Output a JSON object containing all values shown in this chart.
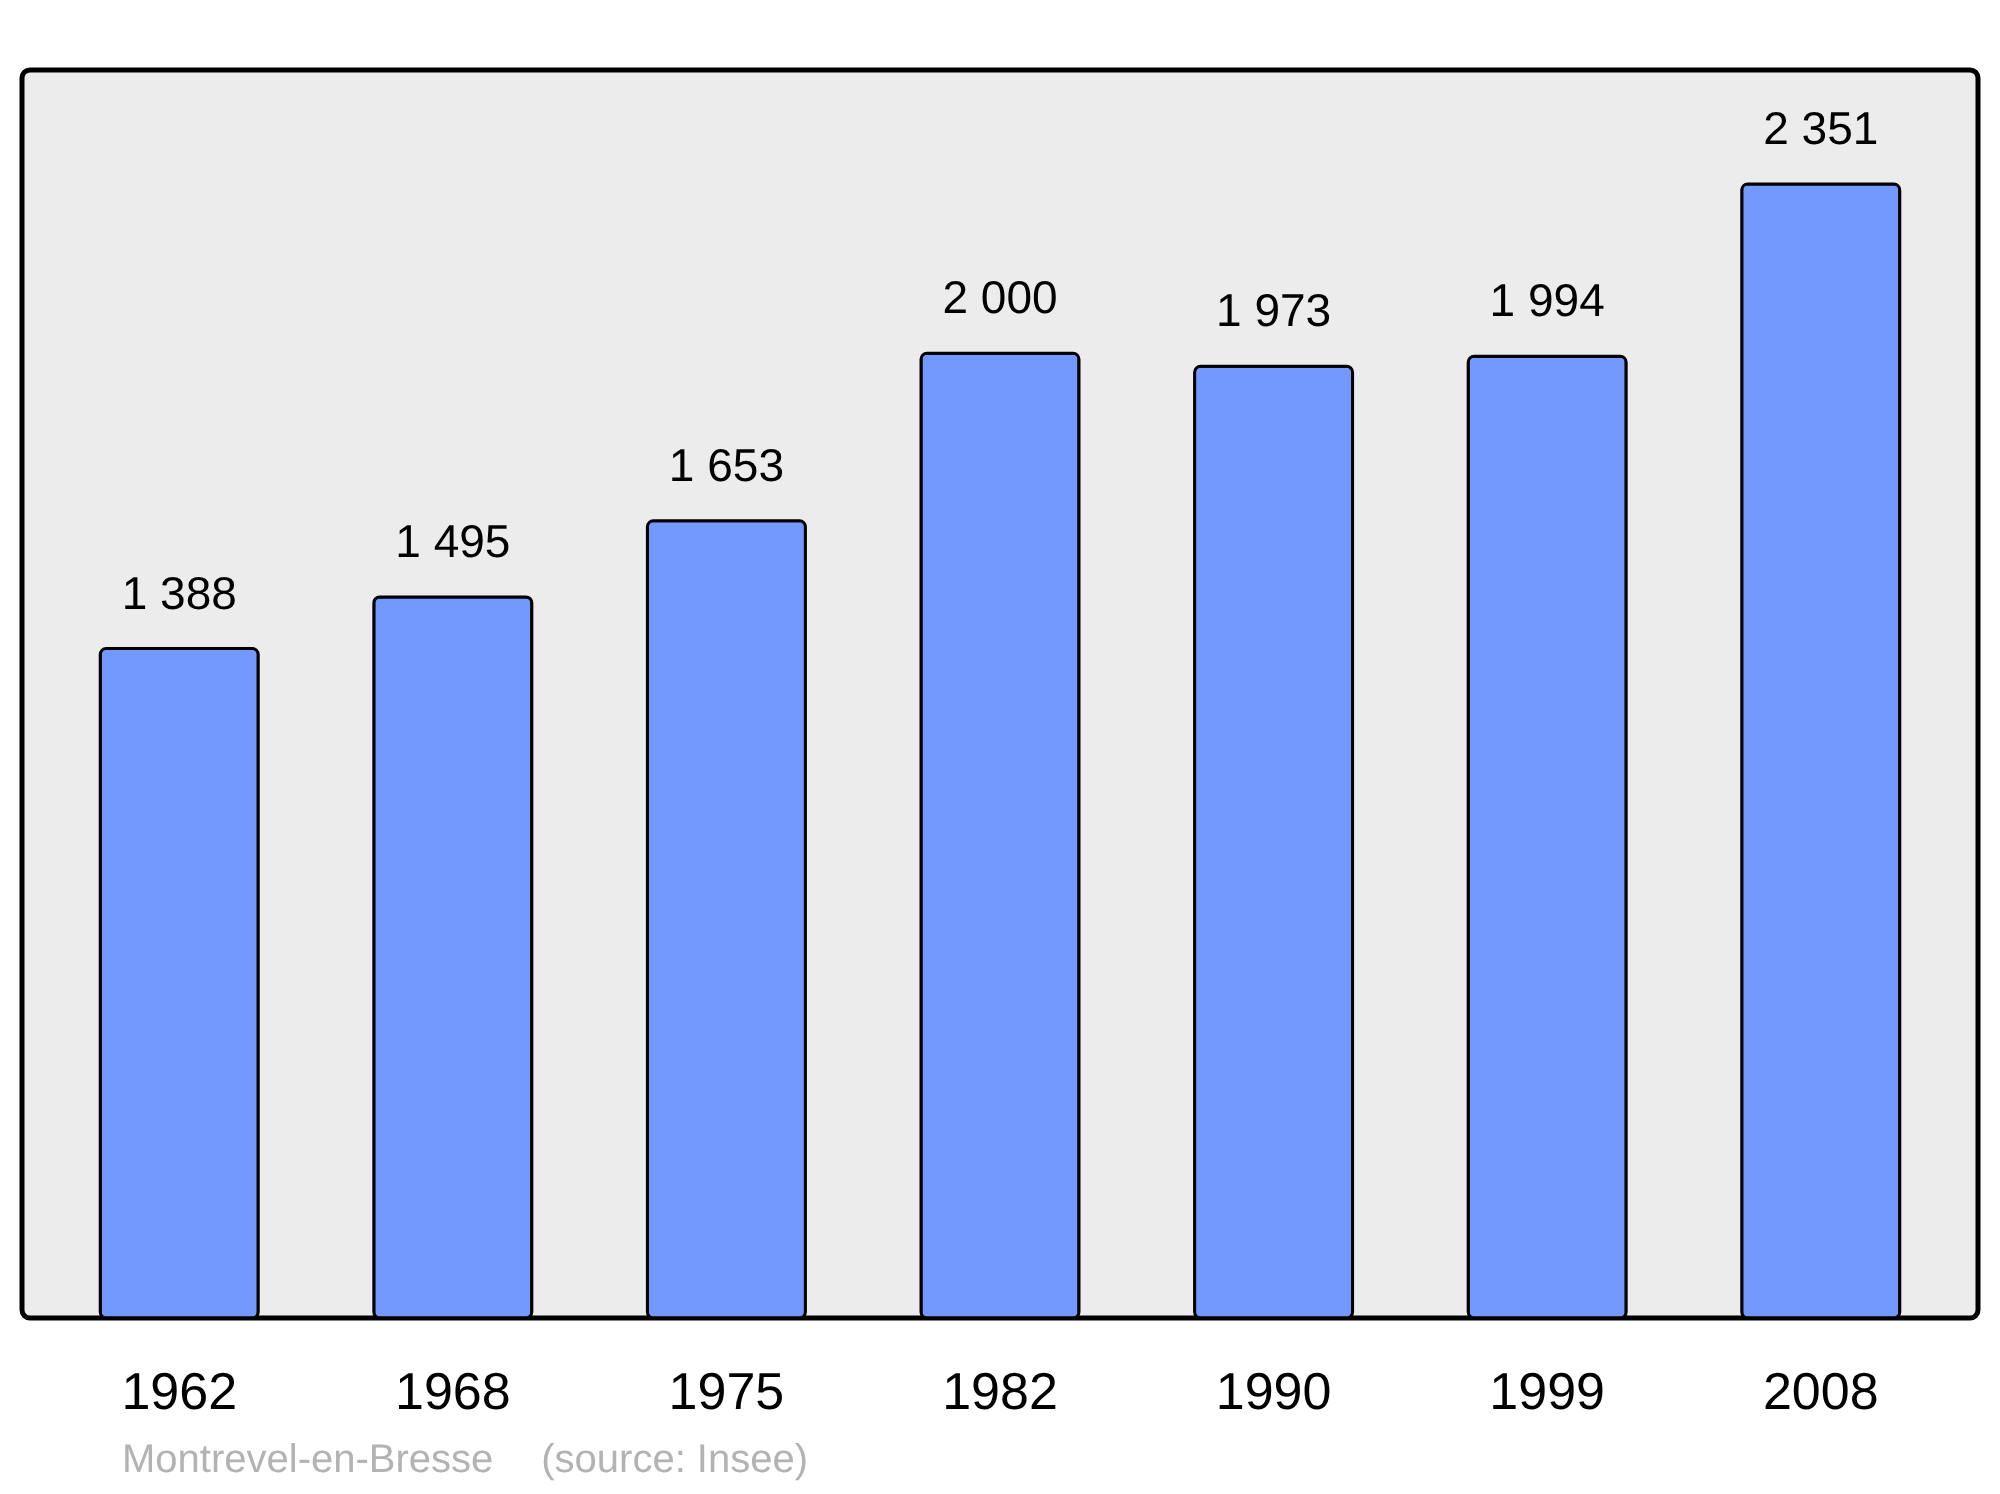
{
  "chart_data": {
    "type": "bar",
    "categories": [
      "1962",
      "1968",
      "1975",
      "1982",
      "1990",
      "1999",
      "2008"
    ],
    "values": [
      1388,
      1495,
      1653,
      2000,
      1973,
      1994,
      2351
    ],
    "value_labels": [
      "1 388",
      "1 495",
      "1 653",
      "2 000",
      "1 973",
      "1 994",
      "2 351"
    ],
    "color": "#7399ff",
    "annotations": [
      "Montrevel-en-Bresse",
      "(source: Insee)"
    ]
  }
}
